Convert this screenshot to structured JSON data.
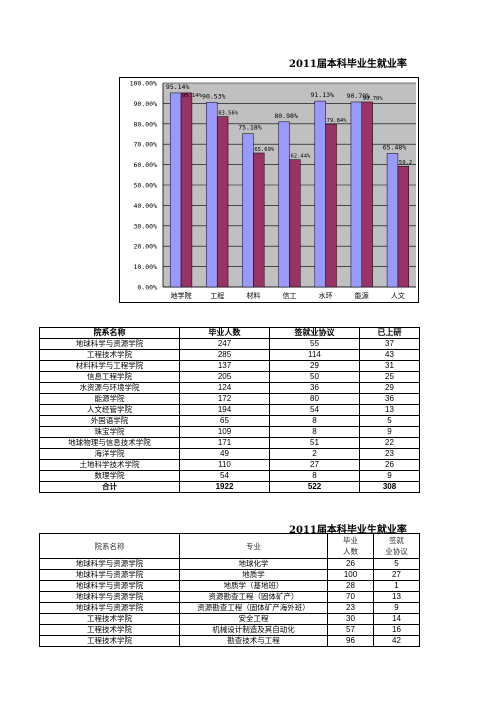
{
  "title1": "2011届本科毕业生就业率",
  "title2": "2011届本科毕业生就业率",
  "colors": {
    "series1": "#9999ff",
    "series2": "#993366",
    "plot_bg": "#c0c0c0"
  },
  "chart_data": {
    "type": "bar",
    "categories": [
      "地学院",
      "工程",
      "材料",
      "信工",
      "水环",
      "能源",
      "人文"
    ],
    "series": [
      {
        "values": [
          95.14,
          90.53,
          75.18,
          80.98,
          91.13,
          90.7,
          65.48
        ],
        "labels": [
          "95.14%",
          "90.53%",
          "75.18%",
          "80.98%",
          "91.13%",
          "90.70%",
          "65.48%"
        ]
      },
      {
        "values": [
          95.14,
          83.56,
          65.69,
          62.44,
          79.84,
          90.7,
          59.23
        ],
        "labels": [
          "95.14%",
          "83.56%",
          "65.69%",
          "62.44%",
          "79.84%",
          "90.70%",
          "59.2"
        ]
      }
    ],
    "yticks": [
      "100.00%",
      "90.00%",
      "80.00%",
      "70.00%",
      "60.00%",
      "50.00%",
      "40.00%",
      "30.00%",
      "20.00%",
      "10.00%",
      "0.00%"
    ],
    "ylim": [
      0,
      100
    ],
    "grid": true
  },
  "table1": {
    "headers": [
      "院系名称",
      "毕业人数",
      "签就业协议",
      "已上研"
    ],
    "rows": [
      [
        "地球科学与资源学院",
        "247",
        "55",
        "37"
      ],
      [
        "工程技术学院",
        "285",
        "114",
        "43"
      ],
      [
        "材料科学与工程学院",
        "137",
        "29",
        "31"
      ],
      [
        "信息工程学院",
        "205",
        "50",
        "25"
      ],
      [
        "水资源与环境学院",
        "124",
        "36",
        "29"
      ],
      [
        "能源学院",
        "172",
        "80",
        "36"
      ],
      [
        "人文经管学院",
        "194",
        "54",
        "13"
      ],
      [
        "外国语学院",
        "65",
        "8",
        "5"
      ],
      [
        "珠宝学院",
        "109",
        "8",
        "9"
      ],
      [
        "地球物理与信息技术学院",
        "171",
        "51",
        "22"
      ],
      [
        "海洋学院",
        "49",
        "2",
        "23"
      ],
      [
        "土地科学技术学院",
        "110",
        "27",
        "26"
      ],
      [
        "数理学院",
        "54",
        "8",
        "9"
      ]
    ],
    "total": [
      "合计",
      "1922",
      "522",
      "308"
    ]
  },
  "table2": {
    "headers": [
      "院系名称",
      "专业",
      "毕业人数",
      "签就业协议"
    ],
    "rows": [
      [
        "地球科学与资源学院",
        "地球化学",
        "26",
        "5"
      ],
      [
        "地球科学与资源学院",
        "地质学",
        "100",
        "27"
      ],
      [
        "地球科学与资源学院",
        "地质学（基地班）",
        "28",
        "1"
      ],
      [
        "地球科学与资源学院",
        "资源勘查工程（固体矿产）",
        "70",
        "13"
      ],
      [
        "地球科学与资源学院",
        "资源勘查工程（固体矿产海外班）",
        "23",
        "9"
      ],
      [
        "工程技术学院",
        "安全工程",
        "30",
        "14"
      ],
      [
        "工程技术学院",
        "机械设计制造及其自动化",
        "57",
        "16"
      ],
      [
        "工程技术学院",
        "勘查技术与工程",
        "96",
        "42"
      ]
    ]
  }
}
